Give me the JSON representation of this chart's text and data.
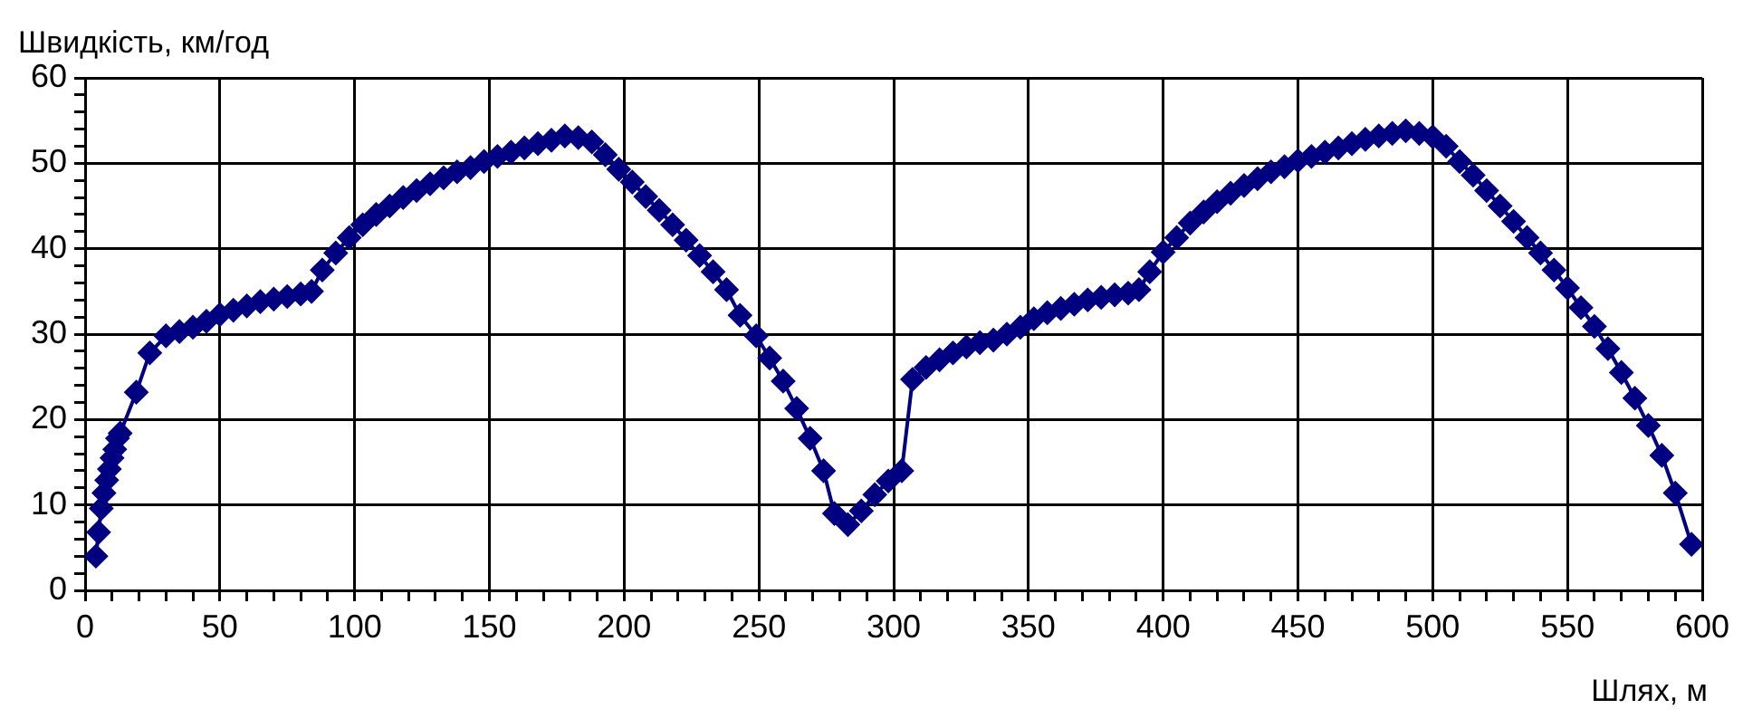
{
  "chart_data": {
    "type": "line",
    "xlabel": "Шлях, м",
    "ylabel": "Швидкість, км/год",
    "xlim": [
      0,
      600
    ],
    "xticks": [
      0,
      {
        "value": 10,
        "label": null
      },
      {
        "value": 20,
        "label": null
      },
      {
        "value": 30,
        "label": null
      },
      {
        "value": 40,
        "label": null
      },
      50,
      {
        "value": 60,
        "label": null
      },
      {
        "value": 70,
        "label": null
      },
      {
        "value": 80,
        "label": null
      },
      {
        "value": 90,
        "label": null
      },
      100,
      {
        "value": 110,
        "label": null
      },
      {
        "value": 120,
        "label": null
      },
      {
        "value": 130,
        "label": null
      },
      {
        "value": 140,
        "label": null
      },
      150,
      {
        "value": 160,
        "label": null
      },
      {
        "value": 170,
        "label": null
      },
      {
        "value": 180,
        "label": null
      },
      {
        "value": 190,
        "label": null
      },
      200,
      {
        "value": 210,
        "label": null
      },
      {
        "value": 220,
        "label": null
      },
      {
        "value": 230,
        "label": null
      },
      {
        "value": 240,
        "label": null
      },
      250,
      {
        "value": 260,
        "label": null
      },
      {
        "value": 270,
        "label": null
      },
      {
        "value": 280,
        "label": null
      },
      {
        "value": 290,
        "label": null
      },
      300,
      {
        "value": 310,
        "label": null
      },
      {
        "value": 320,
        "label": null
      },
      {
        "value": 330,
        "label": null
      },
      {
        "value": 340,
        "label": null
      },
      350,
      {
        "value": 360,
        "label": null
      },
      {
        "value": 370,
        "label": null
      },
      {
        "value": 380,
        "label": null
      },
      {
        "value": 390,
        "label": null
      },
      400,
      {
        "value": 410,
        "label": null
      },
      {
        "value": 420,
        "label": null
      },
      {
        "value": 430,
        "label": null
      },
      {
        "value": 440,
        "label": null
      },
      450,
      {
        "value": 460,
        "label": null
      },
      {
        "value": 470,
        "label": null
      },
      {
        "value": 480,
        "label": null
      },
      {
        "value": 490,
        "label": null
      },
      500,
      {
        "value": 510,
        "label": null
      },
      {
        "value": 520,
        "label": null
      },
      {
        "value": 530,
        "label": null
      },
      {
        "value": 540,
        "label": null
      },
      550,
      {
        "value": 560,
        "label": null
      },
      {
        "value": 570,
        "label": null
      },
      {
        "value": 580,
        "label": null
      },
      {
        "value": 590,
        "label": null
      },
      600
    ],
    "ylim": [
      0,
      60
    ],
    "yticks": [
      0,
      {
        "value": 2,
        "label": null
      },
      {
        "value": 4,
        "label": null
      },
      {
        "value": 6,
        "label": null
      },
      {
        "value": 8,
        "label": null
      },
      10,
      {
        "value": 12,
        "label": null
      },
      {
        "value": 14,
        "label": null
      },
      {
        "value": 16,
        "label": null
      },
      {
        "value": 18,
        "label": null
      },
      20,
      {
        "value": 22,
        "label": null
      },
      {
        "value": 24,
        "label": null
      },
      {
        "value": 26,
        "label": null
      },
      {
        "value": 28,
        "label": null
      },
      30,
      {
        "value": 32,
        "label": null
      },
      {
        "value": 34,
        "label": null
      },
      {
        "value": 36,
        "label": null
      },
      {
        "value": 38,
        "label": null
      },
      40,
      {
        "value": 42,
        "label": null
      },
      {
        "value": 44,
        "label": null
      },
      {
        "value": 46,
        "label": null
      },
      {
        "value": 48,
        "label": null
      },
      50,
      {
        "value": 52,
        "label": null
      },
      {
        "value": 54,
        "label": null
      },
      {
        "value": 56,
        "label": null
      },
      {
        "value": 58,
        "label": null
      },
      60
    ],
    "grid": true,
    "legend": false,
    "marker": "diamond",
    "line_style": "solid",
    "series": [
      {
        "color": "#000080",
        "x": [
          4,
          5,
          6,
          7,
          8,
          9,
          10,
          11,
          12,
          13,
          19,
          24,
          30,
          35,
          40,
          45,
          50,
          55,
          60,
          65,
          70,
          75,
          80,
          84,
          88,
          93,
          98,
          103,
          108,
          113,
          118,
          123,
          128,
          133,
          138,
          143,
          148,
          153,
          158,
          163,
          168,
          173,
          178,
          183,
          188,
          193,
          198,
          203,
          208,
          213,
          218,
          223,
          228,
          233,
          238,
          243,
          249,
          254,
          259,
          264,
          269,
          274,
          278,
          283,
          288,
          293,
          298,
          303,
          307,
          312,
          317,
          322,
          327,
          332,
          337,
          342,
          347,
          352,
          357,
          362,
          367,
          372,
          377,
          382,
          387,
          391,
          395,
          400,
          405,
          410,
          415,
          420,
          425,
          430,
          435,
          440,
          445,
          450,
          455,
          460,
          465,
          470,
          475,
          480,
          485,
          490,
          495,
          500,
          505,
          510,
          515,
          520,
          525,
          530,
          535,
          540,
          545,
          550,
          555,
          560,
          565,
          570,
          575,
          580,
          585,
          590,
          596
        ],
        "values": [
          4,
          6.8,
          9.6,
          11.4,
          12.9,
          14.2,
          15.5,
          16.5,
          17.8,
          18.4,
          23.2,
          27.8,
          29.8,
          30.3,
          30.8,
          31.5,
          32.3,
          32.8,
          33.3,
          33.8,
          34.1,
          34.4,
          34.7,
          35,
          37.5,
          39.5,
          41.3,
          42.8,
          44,
          45,
          46,
          46.8,
          47.6,
          48.3,
          49,
          49.5,
          50.2,
          50.8,
          51.3,
          51.8,
          52.3,
          52.7,
          53.2,
          53,
          52.5,
          51,
          49.3,
          47.8,
          46.1,
          44.5,
          42.8,
          41,
          39.2,
          37.3,
          35.2,
          32.2,
          29.8,
          27.2,
          24.5,
          21.3,
          17.8,
          14,
          9,
          7.7,
          9.3,
          11.2,
          12.8,
          14,
          24.7,
          26.1,
          27,
          27.8,
          28.5,
          29,
          29.3,
          30,
          30.8,
          31.8,
          32.5,
          33,
          33.5,
          34,
          34.3,
          34.6,
          34.8,
          35.2,
          37.3,
          39.6,
          41.3,
          43,
          44.3,
          45.5,
          46.5,
          47.4,
          48.2,
          49,
          49.6,
          50.3,
          50.8,
          51.3,
          51.8,
          52.3,
          52.8,
          53.2,
          53.5,
          53.8,
          53.5,
          53.1,
          52,
          50.2,
          48.6,
          46.8,
          45,
          43.2,
          41.3,
          39.5,
          37.5,
          35.4,
          33.1,
          30.9,
          28.3,
          25.5,
          22.5,
          19.3,
          15.8,
          11.4,
          5.4
        ]
      }
    ]
  }
}
